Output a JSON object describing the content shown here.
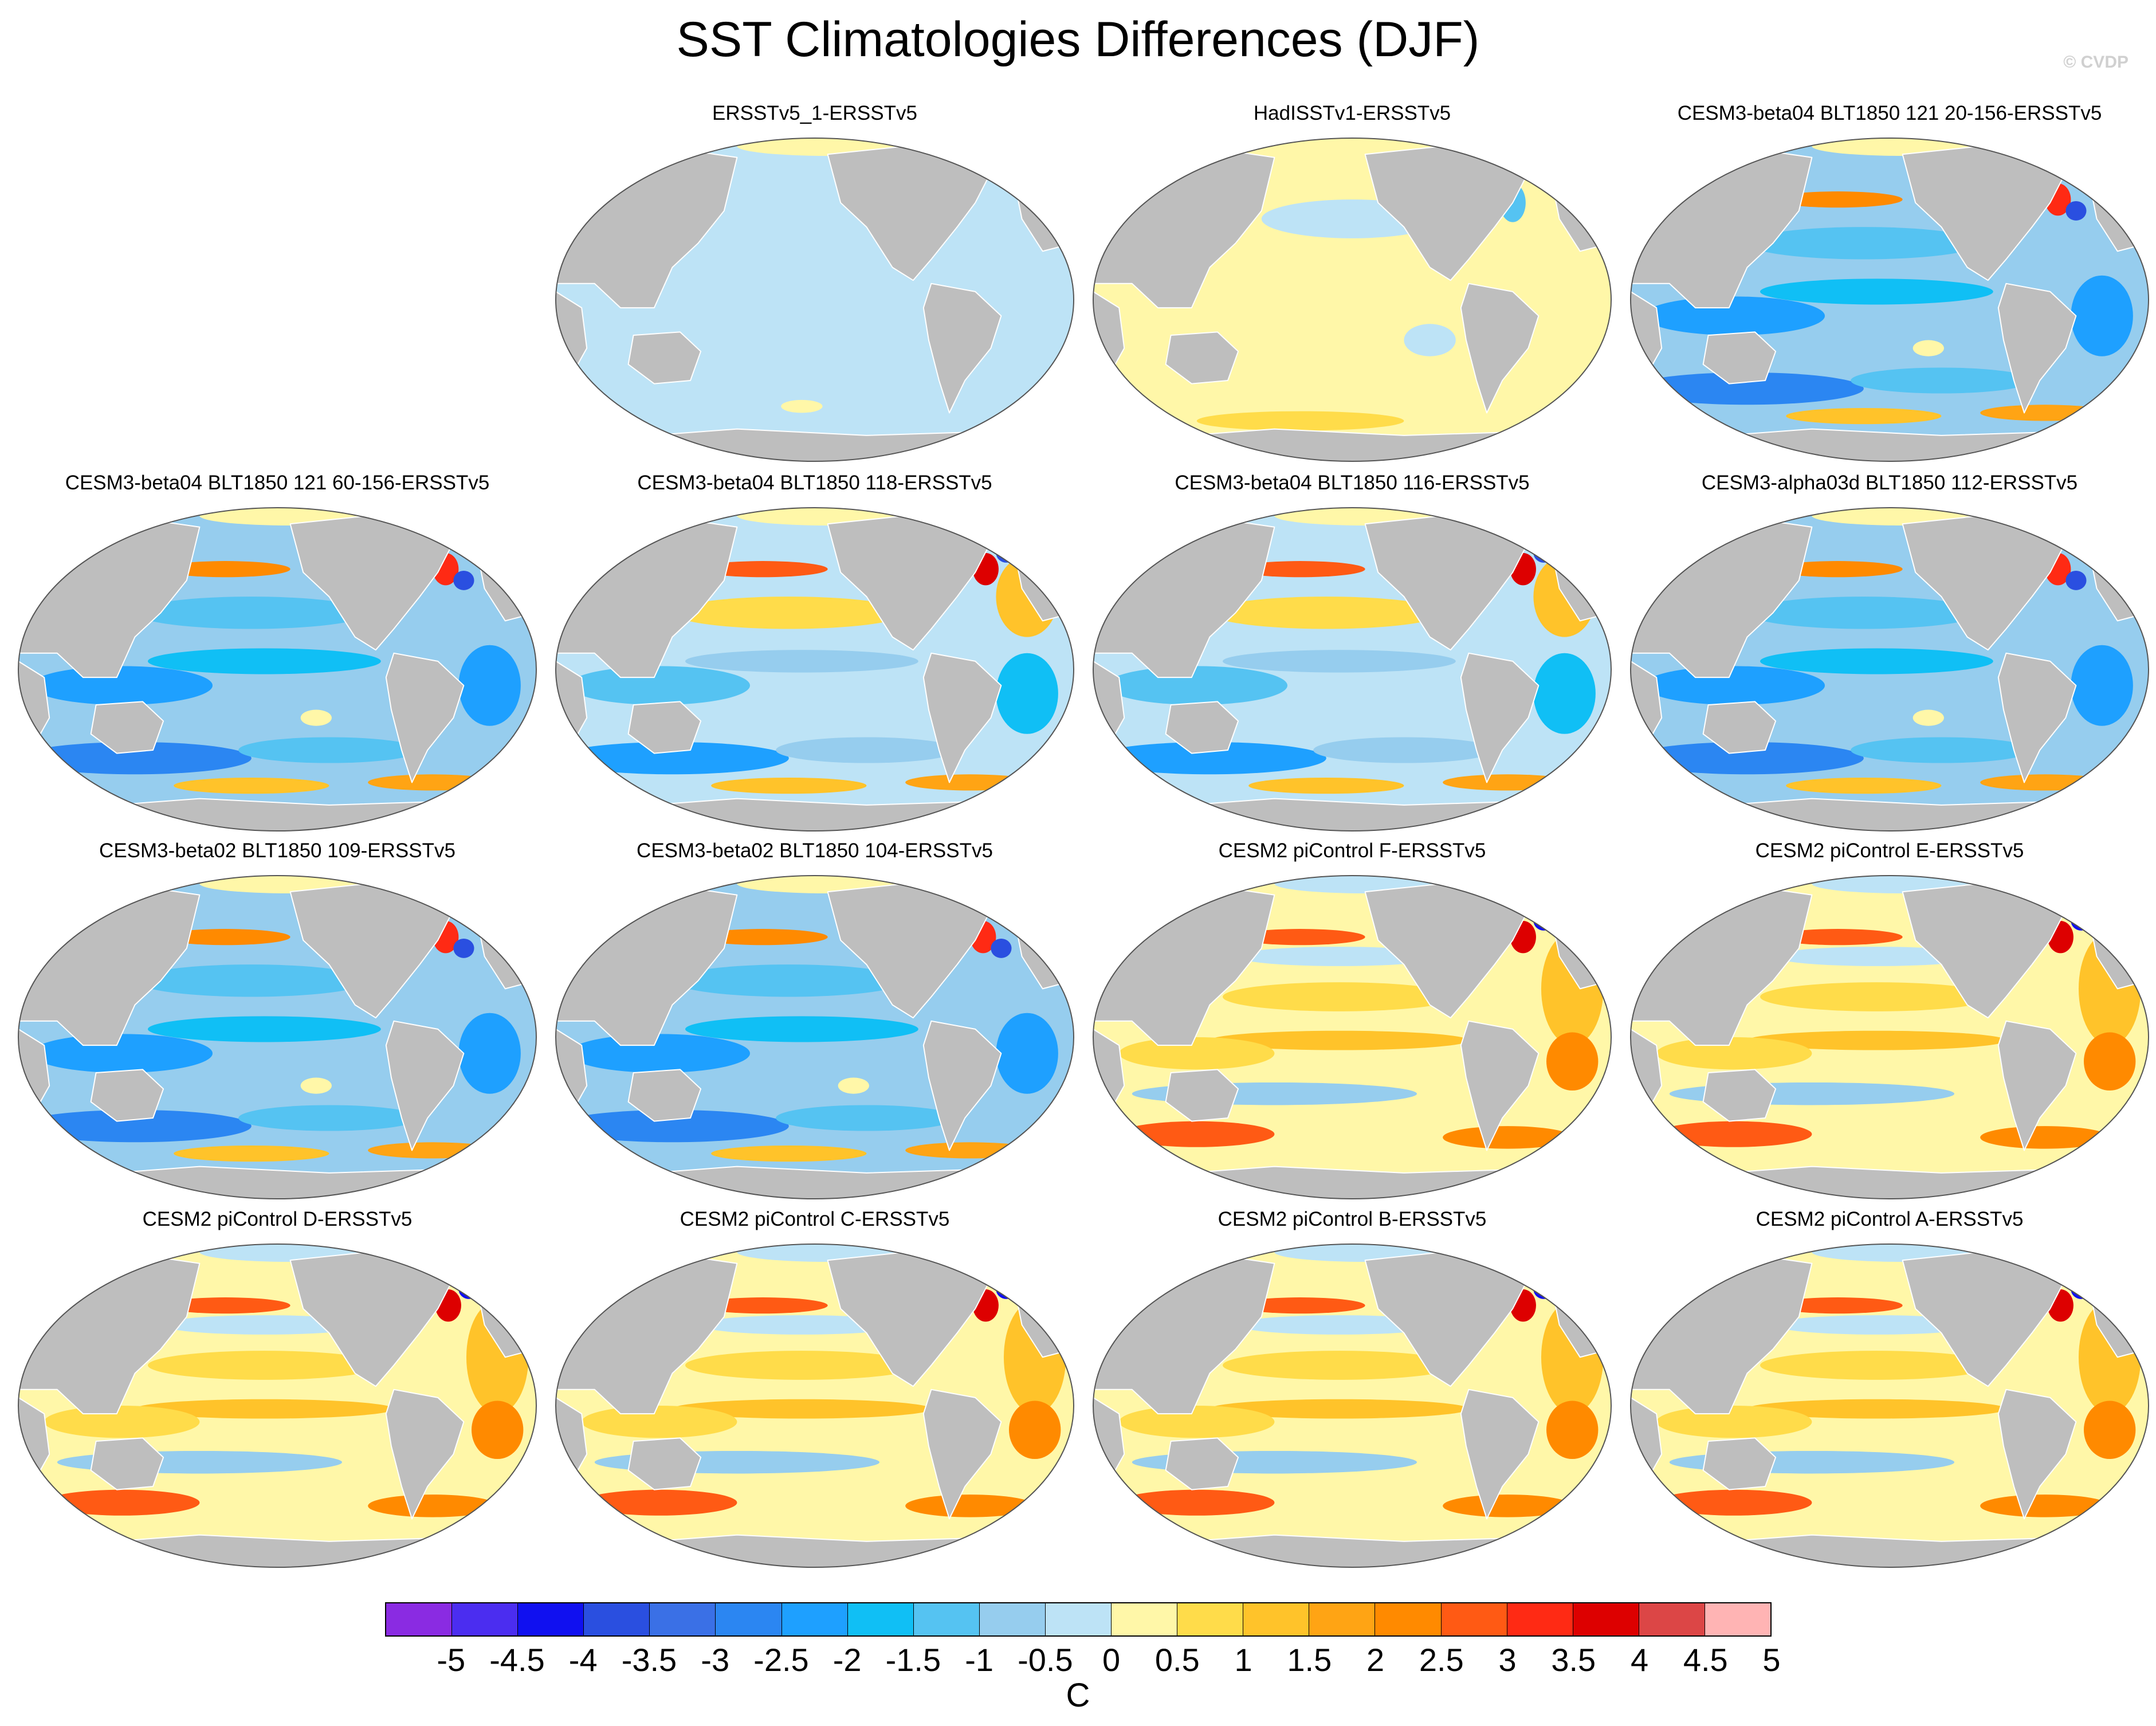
{
  "figure": {
    "title": "SST Climatologies Differences (DJF)",
    "credit": "© CVDP"
  },
  "panels": [
    {
      "id": "p1",
      "title": "ERSSTv5_1-ERSSTv5",
      "scheme": "flat-light-blue"
    },
    {
      "id": "p2",
      "title": "HadISSTv1-ERSSTv5",
      "scheme": "flat-light-yellow"
    },
    {
      "id": "p3",
      "title": "CESM3-beta04 BLT1850 121 20-156-ERSSTv5",
      "scheme": "cold-bias"
    },
    {
      "id": "p4",
      "title": "CESM3-beta04 BLT1850 121 60-156-ERSSTv5",
      "scheme": "cold-bias"
    },
    {
      "id": "p5",
      "title": "CESM3-beta04 BLT1850 118-ERSSTv5",
      "scheme": "mixed-bias"
    },
    {
      "id": "p6",
      "title": "CESM3-beta04 BLT1850 116-ERSSTv5",
      "scheme": "mixed-bias"
    },
    {
      "id": "p7",
      "title": "CESM3-alpha03d BLT1850 112-ERSSTv5",
      "scheme": "cold-bias"
    },
    {
      "id": "p8",
      "title": "CESM3-beta02 BLT1850 109-ERSSTv5",
      "scheme": "cold-bias"
    },
    {
      "id": "p9",
      "title": "CESM3-beta02 BLT1850 104-ERSSTv5",
      "scheme": "cold-bias"
    },
    {
      "id": "p10",
      "title": "CESM2 piControl F-ERSSTv5",
      "scheme": "warm-bias"
    },
    {
      "id": "p11",
      "title": "CESM2 piControl E-ERSSTv5",
      "scheme": "warm-bias"
    },
    {
      "id": "p12",
      "title": "CESM2 piControl D-ERSSTv5",
      "scheme": "warm-bias"
    },
    {
      "id": "p13",
      "title": "CESM2 piControl C-ERSSTv5",
      "scheme": "warm-bias"
    },
    {
      "id": "p14",
      "title": "CESM2 piControl B-ERSSTv5",
      "scheme": "warm-bias"
    },
    {
      "id": "p15",
      "title": "CESM2 piControl A-ERSSTv5",
      "scheme": "warm-bias"
    }
  ],
  "colorbar": {
    "unit_label": "C",
    "tick_labels": [
      "-5",
      "-4.5",
      "-4",
      "-3.5",
      "-3",
      "-2.5",
      "-2",
      "-1.5",
      "-1",
      "-0.5",
      "0",
      "0.5",
      "1",
      "1.5",
      "2",
      "2.5",
      "3",
      "3.5",
      "4",
      "4.5",
      "5"
    ],
    "colors": [
      "#8a2be2",
      "#4b2df0",
      "#1010f0",
      "#2a4fe0",
      "#3a70e6",
      "#2b86f2",
      "#1ea0ff",
      "#10bff5",
      "#55c3f2",
      "#96cdee",
      "#bde3f6",
      "#fff7a8",
      "#ffdc4a",
      "#ffc32a",
      "#ffa414",
      "#ff8a00",
      "#ff5a14",
      "#ff2a14",
      "#dd0000",
      "#dc4646",
      "#ffb4b4"
    ]
  },
  "map_style": {
    "land_color": "#bebebe",
    "coast_color": "#ffffff"
  }
}
